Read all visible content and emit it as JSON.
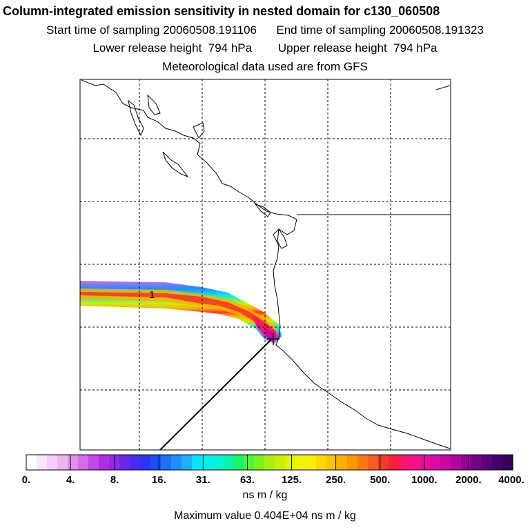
{
  "header": {
    "title": "Column-integrated emission sensitivity in nested domain for c130_060508",
    "start_label": "Start time of sampling",
    "start_value": "20060508.191106",
    "end_label": "End time of sampling",
    "end_value": "20060508.191323",
    "lower_label": "Lower release height",
    "lower_value": "794 hPa",
    "upper_label": "Upper release height",
    "upper_value": "794 hPa",
    "met_line": "Meteorological data used are from GFS"
  },
  "chart_data": {
    "type": "heatmap",
    "title": "Column-integrated emission sensitivity in nested domain for c130_060508",
    "legend_title": "ns m / kg",
    "colorbar": {
      "tick_labels": [
        "0.",
        "4.",
        "8.",
        "16.",
        "31.",
        "63.",
        "125.",
        "250.",
        "500.",
        "1000.",
        "2000.",
        "4000."
      ],
      "colors": [
        "#ffffff",
        "#fbe6fb",
        "#f6cdf6",
        "#f0b3f2",
        "#e38ee9",
        "#d36bea",
        "#c34ae8",
        "#b02ee8",
        "#8f2be8",
        "#6c27ea",
        "#4a2cf0",
        "#2a36f4",
        "#1c4ff8",
        "#1e6ff9",
        "#1f8ffa",
        "#21affb",
        "#00e5ff",
        "#00f0ee",
        "#00f5d2",
        "#00f7b2",
        "#18f66a",
        "#4cf43c",
        "#7cf21e",
        "#a8f10a",
        "#ccf000",
        "#def500",
        "#eef500",
        "#f8ef00",
        "#fdd900",
        "#fdc400",
        "#fcaf00",
        "#fa9800",
        "#fa7a12",
        "#f95c1f",
        "#f53a26",
        "#ff1e3c",
        "#ff1472",
        "#f80f8c",
        "#ec0c9a",
        "#e00aa3",
        "#c808a6",
        "#ae07a0",
        "#920496",
        "#73028a",
        "#5a0078",
        "#44006a",
        "#330057"
      ]
    },
    "plume_label": "1",
    "max_value": "0.404E+04",
    "max_value_label": "Maximum value",
    "max_value_units": "ns m / kg",
    "grid": true
  },
  "colors": {
    "background": "#ffffff",
    "frame": "#000000"
  }
}
